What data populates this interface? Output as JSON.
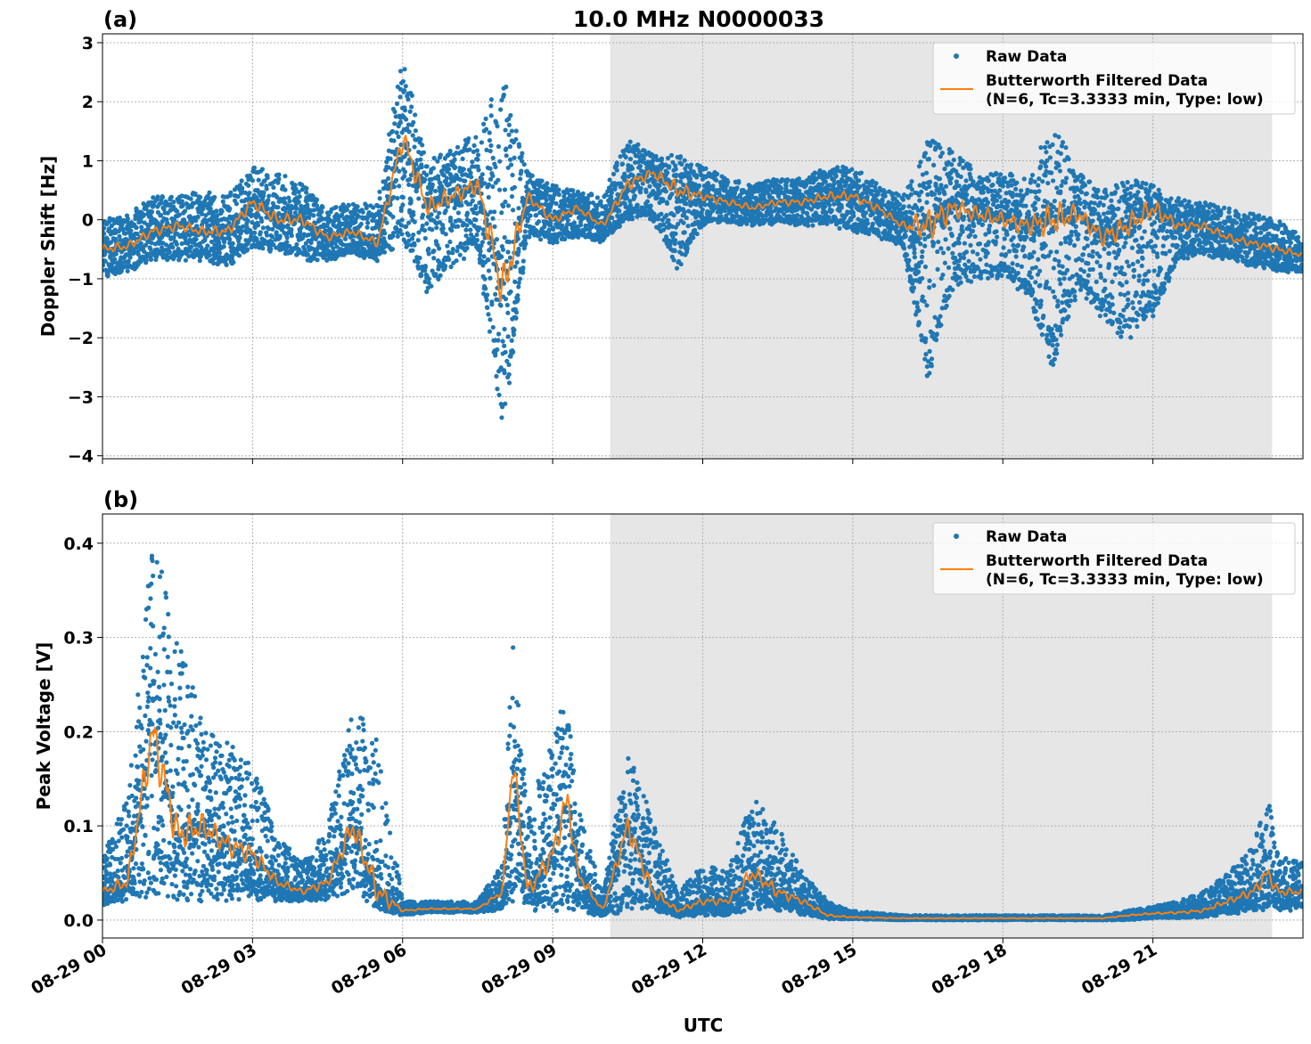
{
  "title": "10.0 MHz N0000033",
  "xlabel": "UTC",
  "colors": {
    "raw": "#1f77b4",
    "filtered": "#ff7f0e",
    "shade": "#e6e6e6"
  },
  "x_ticks": [
    "08-29 00",
    "08-29 03",
    "08-29 06",
    "08-29 09",
    "08-29 12",
    "08-29 15",
    "08-29 18",
    "08-29 21"
  ],
  "xlim": [
    "08-29 00:00",
    "08-30 00:00"
  ],
  "shaded_region": [
    "08-29 10:09",
    "08-29 23:23"
  ],
  "chart_data": [
    {
      "type": "scatter",
      "panel_label": "(a)",
      "ylabel": "Doppler Shift [Hz]",
      "ylim": [
        -4.05,
        3.15
      ],
      "y_ticks": [
        "3",
        "2",
        "1",
        "0",
        "−1",
        "−2",
        "−3",
        "−4"
      ],
      "y_tick_values": [
        3,
        2,
        1,
        0,
        -1,
        -2,
        -3,
        -4
      ],
      "grid": true,
      "legend": {
        "placement": "top-right",
        "raw": "Raw Data",
        "filtered_line1": "Butterworth Filtered Data",
        "filtered_line2": "(N=6, Tc=3.3333 min, Type: low)"
      },
      "series": [
        {
          "name": "Raw Data",
          "kind": "scatter envelope (min/max)",
          "time": [
            "00:00",
            "00:30",
            "01:00",
            "01:30",
            "02:00",
            "02:30",
            "03:00",
            "03:30",
            "04:00",
            "04:30",
            "05:00",
            "05:30",
            "06:00",
            "06:30",
            "07:00",
            "07:30",
            "08:00",
            "08:30",
            "09:00",
            "09:30",
            "10:00",
            "10:30",
            "11:00",
            "11:30",
            "12:00",
            "12:30",
            "13:00",
            "13:30",
            "14:00",
            "14:30",
            "15:00",
            "15:30",
            "16:00",
            "16:30",
            "17:00",
            "17:30",
            "18:00",
            "18:30",
            "19:00",
            "19:30",
            "20:00",
            "20:30",
            "21:00",
            "21:30",
            "22:00",
            "22:30",
            "23:00",
            "23:30",
            "24:00"
          ],
          "min": [
            -1.0,
            -0.9,
            -0.7,
            -0.7,
            -0.7,
            -0.8,
            -0.5,
            -0.6,
            -0.7,
            -0.7,
            -0.6,
            -0.7,
            -0.4,
            -1.3,
            -0.8,
            -0.5,
            -3.7,
            -0.3,
            -0.4,
            -0.3,
            -0.4,
            0.0,
            0.0,
            -0.9,
            -0.1,
            -0.1,
            -0.1,
            -0.1,
            -0.1,
            -0.1,
            -0.2,
            -0.3,
            -0.5,
            -2.8,
            -1.2,
            -1.0,
            -1.0,
            -1.3,
            -2.6,
            -1.2,
            -1.7,
            -2.1,
            -1.7,
            -0.7,
            -0.6,
            -0.7,
            -0.8,
            -0.9,
            -0.9
          ],
          "max": [
            0.0,
            0.1,
            0.4,
            0.4,
            0.5,
            0.4,
            0.9,
            0.8,
            0.6,
            0.2,
            0.3,
            0.3,
            2.8,
            1.0,
            1.2,
            1.5,
            2.5,
            0.8,
            0.6,
            0.5,
            0.4,
            1.4,
            1.1,
            1.1,
            0.9,
            0.7,
            0.6,
            0.7,
            0.7,
            0.9,
            0.9,
            0.6,
            0.4,
            1.4,
            1.2,
            0.8,
            0.8,
            0.8,
            1.7,
            0.8,
            0.5,
            0.7,
            0.6,
            0.4,
            0.3,
            0.2,
            0.1,
            0.0,
            -0.3
          ]
        },
        {
          "name": "Butterworth Filtered Data",
          "kind": "line",
          "time": [
            "00:00",
            "00:30",
            "01:00",
            "01:30",
            "02:00",
            "02:30",
            "03:00",
            "03:30",
            "04:00",
            "04:30",
            "05:00",
            "05:30",
            "06:00",
            "06:30",
            "07:00",
            "07:30",
            "08:00",
            "08:30",
            "09:00",
            "09:30",
            "10:00",
            "10:30",
            "11:00",
            "11:30",
            "12:00",
            "12:30",
            "13:00",
            "13:30",
            "14:00",
            "14:30",
            "15:00",
            "15:30",
            "16:00",
            "16:30",
            "17:00",
            "17:30",
            "18:00",
            "18:30",
            "19:00",
            "19:30",
            "20:00",
            "20:30",
            "21:00",
            "21:30",
            "22:00",
            "22:30",
            "23:00",
            "23:30",
            "24:00"
          ],
          "values": [
            -0.5,
            -0.45,
            -0.2,
            -0.1,
            -0.2,
            -0.2,
            0.3,
            0.0,
            0.0,
            -0.3,
            -0.2,
            -0.4,
            1.4,
            0.2,
            0.4,
            0.6,
            -1.2,
            0.4,
            0.0,
            0.2,
            -0.1,
            0.6,
            0.8,
            0.5,
            0.4,
            0.3,
            0.2,
            0.3,
            0.3,
            0.4,
            0.4,
            0.2,
            -0.1,
            -0.1,
            0.2,
            0.1,
            0.0,
            -0.1,
            0.0,
            0.1,
            -0.3,
            -0.1,
            0.2,
            -0.1,
            -0.1,
            -0.3,
            -0.4,
            -0.5,
            -0.6
          ]
        }
      ]
    },
    {
      "type": "scatter",
      "panel_label": "(b)",
      "ylabel": "Peak Voltage [V]",
      "ylim": [
        -0.019,
        0.431
      ],
      "y_ticks": [
        "0.4",
        "0.3",
        "0.2",
        "0.1",
        "0.0"
      ],
      "y_tick_values": [
        0.4,
        0.3,
        0.2,
        0.1,
        0.0
      ],
      "grid": true,
      "legend": {
        "placement": "top-right",
        "raw": "Raw Data",
        "filtered_line1": "Butterworth Filtered Data",
        "filtered_line2": "(N=6, Tc=3.3333 min, Type: low)"
      },
      "series": [
        {
          "name": "Raw Data",
          "kind": "scatter envelope (min/max)",
          "time": [
            "00:00",
            "00:30",
            "01:00",
            "01:30",
            "02:00",
            "02:30",
            "03:00",
            "03:30",
            "04:00",
            "04:30",
            "05:00",
            "05:30",
            "06:00",
            "06:30",
            "07:00",
            "07:30",
            "08:00",
            "08:12",
            "08:30",
            "09:00",
            "09:18",
            "09:30",
            "10:00",
            "10:30",
            "11:00",
            "11:30",
            "12:00",
            "12:30",
            "13:00",
            "13:30",
            "14:00",
            "14:30",
            "15:00",
            "16:00",
            "17:00",
            "18:00",
            "19:00",
            "20:00",
            "20:30",
            "21:00",
            "21:30",
            "22:00",
            "22:30",
            "23:00",
            "23:18",
            "23:30",
            "24:00"
          ],
          "min": [
            0.015,
            0.02,
            0.02,
            0.02,
            0.02,
            0.02,
            0.02,
            0.02,
            0.02,
            0.02,
            0.03,
            0.01,
            0.005,
            0.008,
            0.008,
            0.008,
            0.01,
            0.02,
            0.01,
            0.01,
            0.01,
            0.01,
            0.003,
            0.01,
            0.01,
            0.003,
            0.005,
            0.005,
            0.01,
            0.01,
            0.005,
            0.001,
            0.001,
            0.0,
            0.0,
            0.0,
            0.0,
            0.0,
            0.0,
            0.002,
            0.002,
            0.003,
            0.005,
            0.01,
            0.01,
            0.01,
            0.01
          ],
          "max": [
            0.07,
            0.13,
            0.41,
            0.31,
            0.21,
            0.19,
            0.17,
            0.09,
            0.06,
            0.1,
            0.23,
            0.2,
            0.02,
            0.02,
            0.02,
            0.02,
            0.06,
            0.3,
            0.12,
            0.19,
            0.25,
            0.12,
            0.03,
            0.18,
            0.11,
            0.03,
            0.06,
            0.05,
            0.13,
            0.1,
            0.05,
            0.02,
            0.01,
            0.005,
            0.005,
            0.005,
            0.005,
            0.005,
            0.01,
            0.015,
            0.02,
            0.03,
            0.05,
            0.08,
            0.13,
            0.07,
            0.06
          ]
        },
        {
          "name": "Butterworth Filtered Data",
          "kind": "line",
          "time": [
            "00:00",
            "00:30",
            "01:00",
            "01:30",
            "02:00",
            "02:30",
            "03:00",
            "03:30",
            "04:00",
            "04:30",
            "05:00",
            "05:30",
            "06:00",
            "06:30",
            "07:00",
            "07:30",
            "08:00",
            "08:12",
            "08:30",
            "09:00",
            "09:18",
            "09:30",
            "10:00",
            "10:30",
            "11:00",
            "11:30",
            "12:00",
            "12:30",
            "13:00",
            "13:30",
            "14:00",
            "14:30",
            "15:00",
            "16:00",
            "17:00",
            "18:00",
            "19:00",
            "20:00",
            "20:30",
            "21:00",
            "21:30",
            "22:00",
            "22:30",
            "23:00",
            "23:18",
            "23:30",
            "24:00"
          ],
          "values": [
            0.03,
            0.04,
            0.2,
            0.09,
            0.1,
            0.08,
            0.07,
            0.04,
            0.03,
            0.04,
            0.1,
            0.03,
            0.01,
            0.012,
            0.012,
            0.012,
            0.03,
            0.17,
            0.03,
            0.07,
            0.13,
            0.05,
            0.01,
            0.1,
            0.03,
            0.01,
            0.02,
            0.02,
            0.05,
            0.03,
            0.02,
            0.005,
            0.003,
            0.002,
            0.002,
            0.002,
            0.002,
            0.002,
            0.005,
            0.007,
            0.008,
            0.01,
            0.02,
            0.03,
            0.05,
            0.03,
            0.03
          ]
        }
      ]
    }
  ]
}
